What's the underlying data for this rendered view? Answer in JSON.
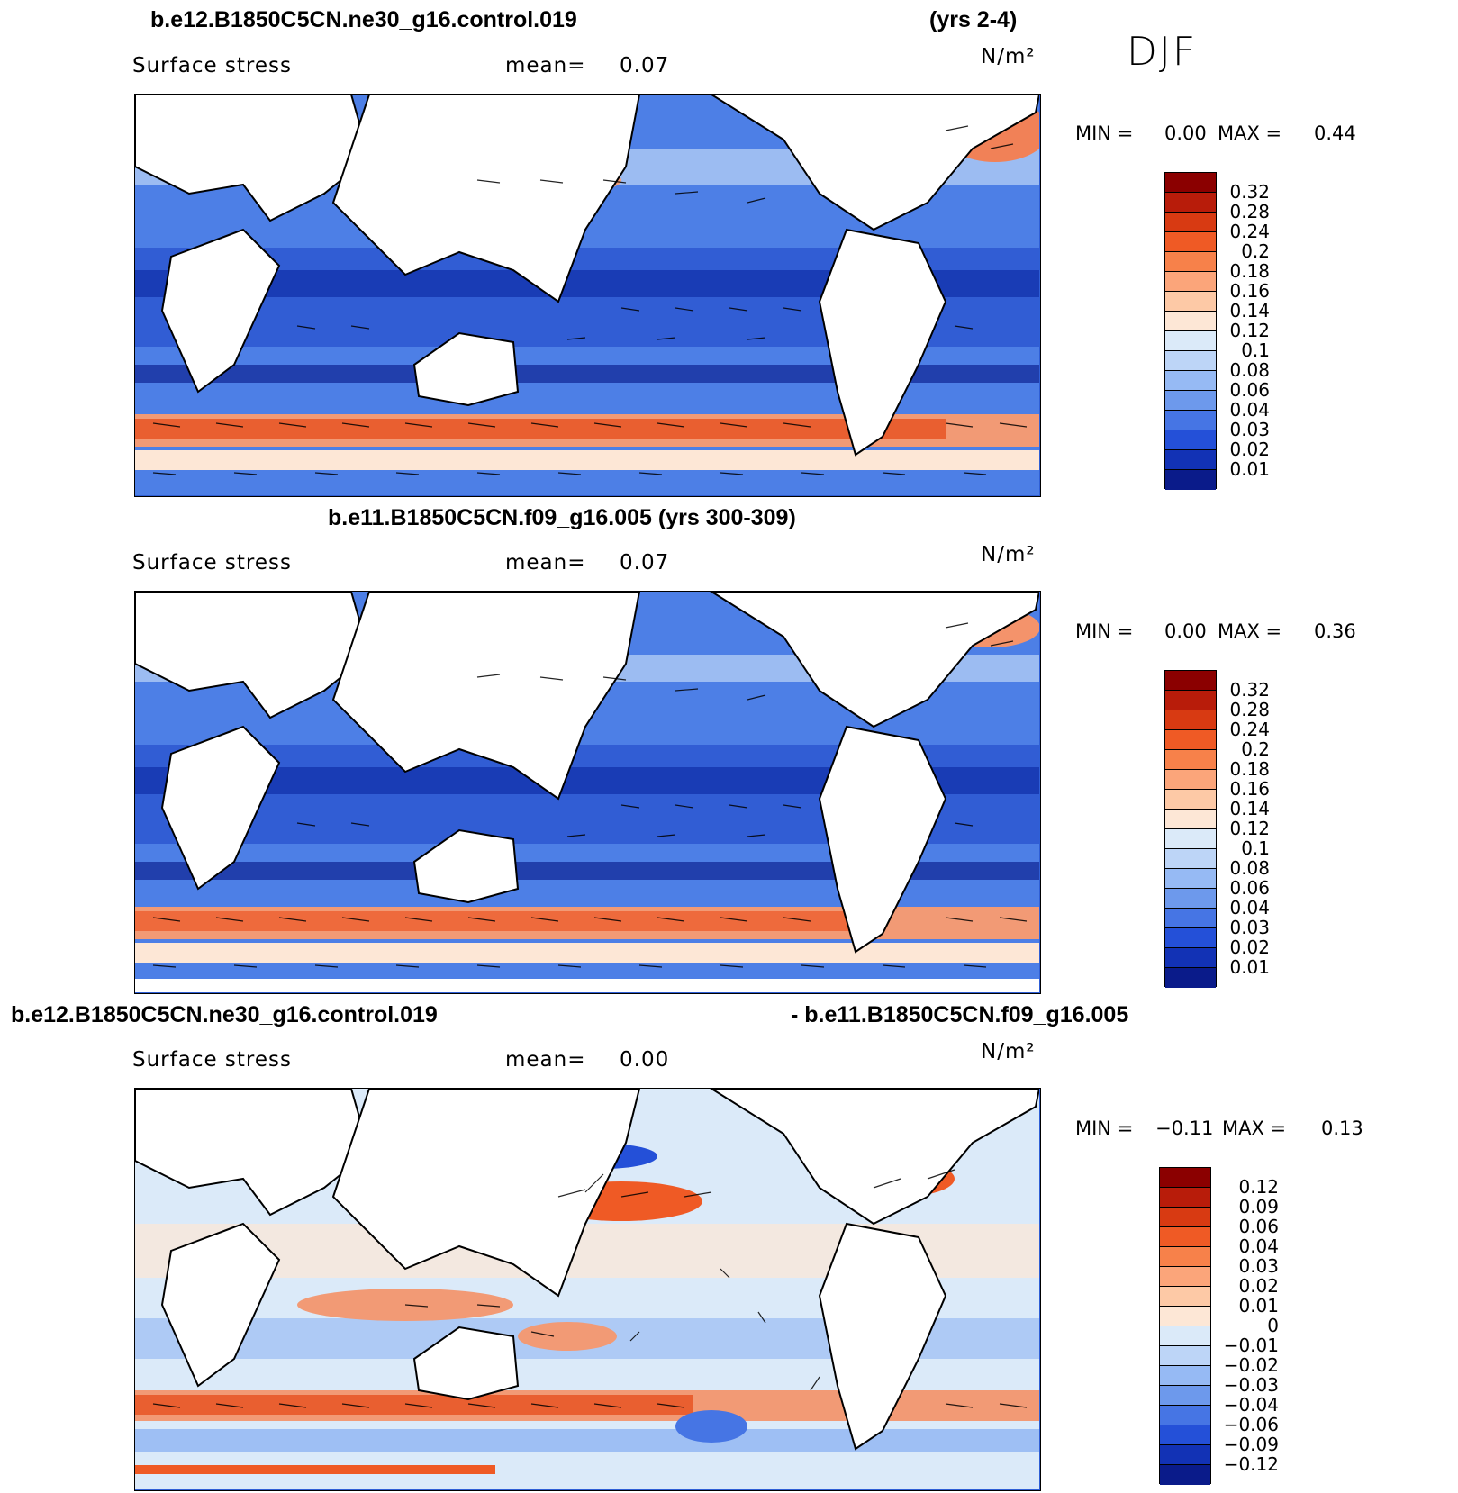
{
  "season": "DJF",
  "units": "N/m²",
  "panels": [
    {
      "title_left": "b.e12.B1850C5CN.ne30_g16.control.019",
      "title_right": "(yrs 2-4)",
      "variable": "Surface stress",
      "mean_label": "mean=",
      "mean_value": "0.07",
      "min_label": "MIN =",
      "min_value": "0.00",
      "max_label": "MAX =",
      "max_value": "0.44",
      "colorbar": {
        "colors": [
          "#8b0000",
          "#b81c0a",
          "#d83a12",
          "#ef5a25",
          "#f7814a",
          "#fba57a",
          "#fdc9a6",
          "#fde7d6",
          "#dbeaf9",
          "#bdd5f7",
          "#96baf4",
          "#6d99ec",
          "#4675e4",
          "#2450d8",
          "#1232b5",
          "#0a1b8a"
        ],
        "ticks": [
          "0.32",
          "0.28",
          "0.24",
          "0.2",
          "0.18",
          "0.16",
          "0.14",
          "0.12",
          "0.1",
          "0.08",
          "0.06",
          "0.04",
          "0.03",
          "0.02",
          "0.01"
        ]
      }
    },
    {
      "title_left": "b.e11.B1850C5CN.f09_g16.005 (yrs 300-309)",
      "title_right": "",
      "variable": "Surface stress",
      "mean_label": "mean=",
      "mean_value": "0.07",
      "min_label": "MIN =",
      "min_value": "0.00",
      "max_label": "MAX =",
      "max_value": "0.36",
      "colorbar": {
        "colors": [
          "#8b0000",
          "#b81c0a",
          "#d83a12",
          "#ef5a25",
          "#f7814a",
          "#fba57a",
          "#fdc9a6",
          "#fde7d6",
          "#dbeaf9",
          "#bdd5f7",
          "#96baf4",
          "#6d99ec",
          "#4675e4",
          "#2450d8",
          "#1232b5",
          "#0a1b8a"
        ],
        "ticks": [
          "0.32",
          "0.28",
          "0.24",
          "0.2",
          "0.18",
          "0.16",
          "0.14",
          "0.12",
          "0.1",
          "0.08",
          "0.06",
          "0.04",
          "0.03",
          "0.02",
          "0.01"
        ]
      }
    },
    {
      "title_left": "b.e12.B1850C5CN.ne30_g16.control.019",
      "title_right": "- b.e11.B1850C5CN.f09_g16.005",
      "variable": "Surface stress",
      "mean_label": "mean=",
      "mean_value": "0.00",
      "min_label": "MIN =",
      "min_value": "−0.11",
      "max_label": "MAX =",
      "max_value": "0.13",
      "colorbar": {
        "colors": [
          "#8b0000",
          "#b81c0a",
          "#d83a12",
          "#ef5a25",
          "#f7814a",
          "#fba57a",
          "#fdc9a6",
          "#fde7d6",
          "#dbeaf9",
          "#bdd5f7",
          "#96baf4",
          "#6d99ec",
          "#4675e4",
          "#2450d8",
          "#1232b5",
          "#0a1b8a"
        ],
        "ticks": [
          "0.12",
          "0.09",
          "0.06",
          "0.04",
          "0.03",
          "0.02",
          "0.01",
          "0",
          "−0.01",
          "−0.02",
          "−0.03",
          "−0.04",
          "−0.06",
          "−0.09",
          "−0.12"
        ]
      }
    }
  ]
}
